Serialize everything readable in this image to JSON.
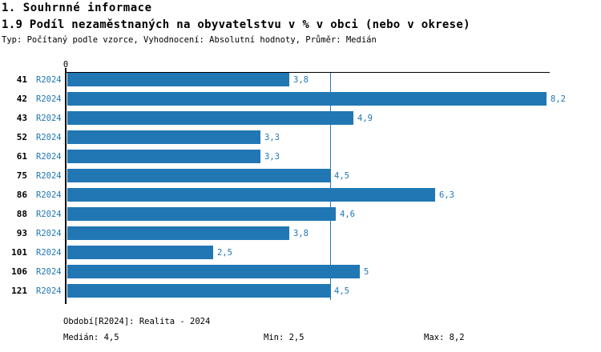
{
  "header": {
    "title1": "1. Souhrnné informace",
    "title2": "1.9 Podíl nezaměstnaných na obyvatelstvu v % v obci (nebo v okrese)",
    "subtitle": "Typ: Počítaný podle vzorce, Vyhodnocení: Absolutní hodnoty, Průměr: Medián"
  },
  "chart_data": {
    "type": "bar",
    "orientation": "horizontal",
    "categories": [
      "41",
      "42",
      "43",
      "52",
      "61",
      "75",
      "86",
      "88",
      "93",
      "101",
      "106",
      "121"
    ],
    "series_label": "R2024",
    "values": [
      3.8,
      8.2,
      4.9,
      3.3,
      3.3,
      4.5,
      6.3,
      4.6,
      3.8,
      2.5,
      5,
      4.5
    ],
    "value_labels": [
      "3,8",
      "8,2",
      "4,9",
      "3,3",
      "3,3",
      "4,5",
      "6,3",
      "4,6",
      "3,8",
      "2,5",
      "5",
      "4,5"
    ],
    "xlim": [
      0,
      8.2
    ],
    "x_tick_labels": [
      "0"
    ],
    "median_line_value": 4.5,
    "grid": false,
    "legend": "none",
    "bar_color": "#2077b4",
    "label_color": "#2077b4",
    "axis_color": "#000000"
  },
  "footer": {
    "period": "Období[R2024]: Realita - 2024",
    "median": "Medián: 4,5",
    "min": "Min: 2,5",
    "max": "Max: 8,2"
  }
}
